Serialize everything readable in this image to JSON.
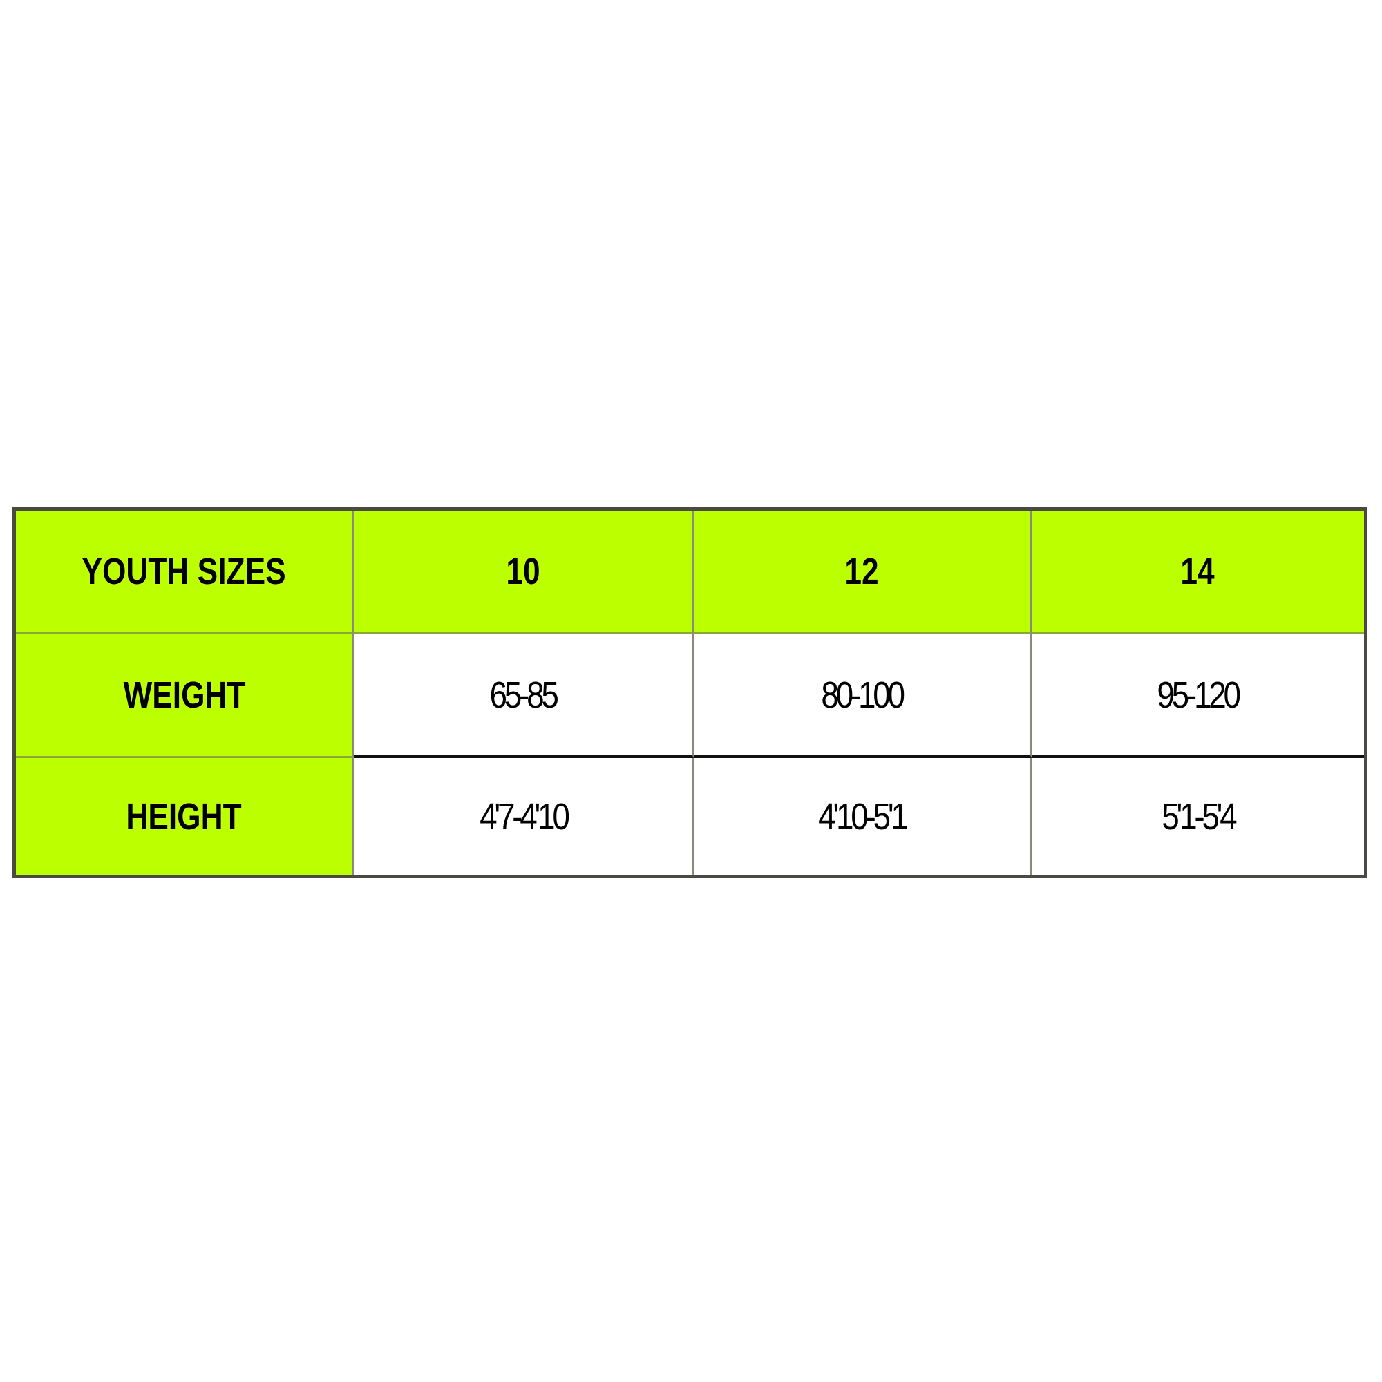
{
  "size_chart": {
    "header": {
      "label": "YOUTH SIZES",
      "sizes": [
        "10",
        "12",
        "14"
      ]
    },
    "rows": [
      {
        "label": "WEIGHT",
        "values": [
          "65-85",
          "80-100",
          "95-120"
        ]
      },
      {
        "label": "HEIGHT",
        "values": [
          "4'7-4'10",
          "4'10-5'1",
          "5'1-5'4"
        ]
      }
    ]
  },
  "colors": {
    "header_fill": "#bbff00",
    "border": "#4a4a42"
  }
}
